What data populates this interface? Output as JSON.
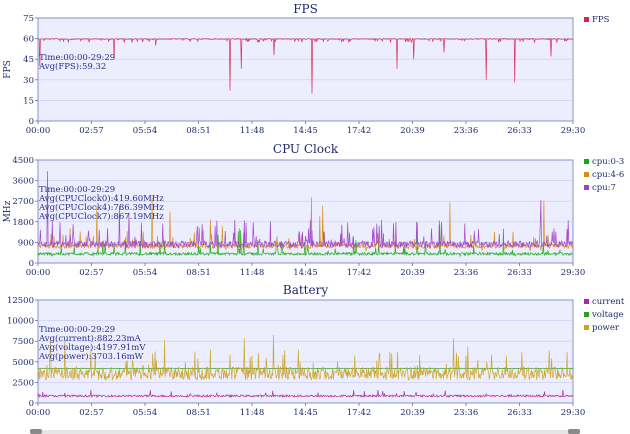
{
  "charts": [
    {
      "type": "line",
      "title": "FPS",
      "ylabel": "FPS",
      "ylim": [
        0,
        75
      ],
      "yticks": [
        0,
        15,
        30,
        45,
        60,
        75
      ],
      "xticks": [
        "00:00",
        "02:57",
        "05:54",
        "08:51",
        "11:48",
        "14:45",
        "17:42",
        "20:39",
        "23:36",
        "26:33",
        "29:30"
      ],
      "series": [
        {
          "name": "FPS",
          "color": "#d6264f",
          "baseline": 60,
          "typical_low": 58,
          "dips": [
            [
              0.1,
              40
            ],
            [
              4.2,
              45
            ],
            [
              10.6,
              22
            ],
            [
              11.2,
              38
            ],
            [
              15.1,
              20
            ],
            [
              19.8,
              38
            ],
            [
              20.7,
              45
            ],
            [
              24.7,
              30
            ],
            [
              26.3,
              28
            ],
            [
              28.3,
              47
            ],
            [
              13.0,
              48
            ],
            [
              6.5,
              55
            ],
            [
              22.4,
              50
            ]
          ]
        }
      ],
      "annotation": [
        "Time:00:00-29:29",
        "Avg(FPS):59.32"
      ]
    },
    {
      "type": "line",
      "title": "CPU Clock",
      "ylabel": "MHz",
      "ylim": [
        0,
        4500
      ],
      "yticks": [
        0,
        900,
        1800,
        2700,
        3600,
        4500
      ],
      "tick_labels": [
        "0",
        "900",
        "1800",
        "2700",
        "3600",
        "4500"
      ],
      "xticks": [
        "00:00",
        "02:57",
        "05:54",
        "08:51",
        "11:48",
        "14:45",
        "17:42",
        "20:39",
        "23:36",
        "26:33",
        "29:30"
      ],
      "series": [
        {
          "name": "cpu:0-3",
          "color": "#1aa61a",
          "typical": 420,
          "spike_max": 1800
        },
        {
          "name": "cpu:4-6",
          "color": "#d68b1a",
          "typical": 790,
          "spike_max": 3000
        },
        {
          "name": "cpu:7",
          "color": "#a040c8",
          "typical": 870,
          "spike_max": 4200
        }
      ],
      "annotation": [
        "Time:00:00-29:29",
        "Avg(CPUClock0):419.60MHz",
        "Avg(CPUClock4):786.39MHz",
        "Avg(CPUClock7):867.19MHz"
      ]
    },
    {
      "type": "line",
      "title": "Battery",
      "ylabel": "",
      "ylim": [
        0,
        12500
      ],
      "yticks": [
        0,
        2500,
        5000,
        7500,
        10000,
        12500
      ],
      "tick_labels": [
        "0",
        "2500",
        "5000",
        "7500",
        "10000",
        "12500"
      ],
      "xticks": [
        "00:00",
        "02:57",
        "05:54",
        "08:51",
        "11:48",
        "14:45",
        "17:42",
        "20:39",
        "23:36",
        "26:33",
        "29:30"
      ],
      "series": [
        {
          "name": "current",
          "color": "#b0259c",
          "typical": 882,
          "spike_max": 1600
        },
        {
          "name": "voltage",
          "color": "#2aa02a",
          "typical": 4198,
          "spike_max": 4300
        },
        {
          "name": "power",
          "color": "#c9a227",
          "typical": 3703,
          "spike_max": 9000
        }
      ],
      "annotation": [
        "Time:00:00-29:29",
        "Avg(current):882.23mA",
        "Avg(voltage):4197.91mV",
        "Avg(power):3703.16mW"
      ]
    }
  ],
  "chart_data": [
    {
      "type": "line",
      "title": "FPS",
      "ylabel": "FPS",
      "ylim": [
        0,
        75
      ],
      "xlim": [
        "00:00",
        "29:30"
      ],
      "series": [
        {
          "name": "FPS",
          "mean": 59.32
        }
      ]
    },
    {
      "type": "line",
      "title": "CPU Clock",
      "ylabel": "MHz",
      "ylim": [
        0,
        4500
      ],
      "xlim": [
        "00:00",
        "29:30"
      ],
      "series": [
        {
          "name": "cpu:0-3",
          "mean": 419.6
        },
        {
          "name": "cpu:4-6",
          "mean": 786.39
        },
        {
          "name": "cpu:7",
          "mean": 867.19
        }
      ]
    },
    {
      "type": "line",
      "title": "Battery",
      "ylim": [
        0,
        12500
      ],
      "xlim": [
        "00:00",
        "29:30"
      ],
      "series": [
        {
          "name": "current",
          "mean": 882.23
        },
        {
          "name": "voltage",
          "mean": 4197.91
        },
        {
          "name": "power",
          "mean": 3703.16
        }
      ]
    }
  ]
}
